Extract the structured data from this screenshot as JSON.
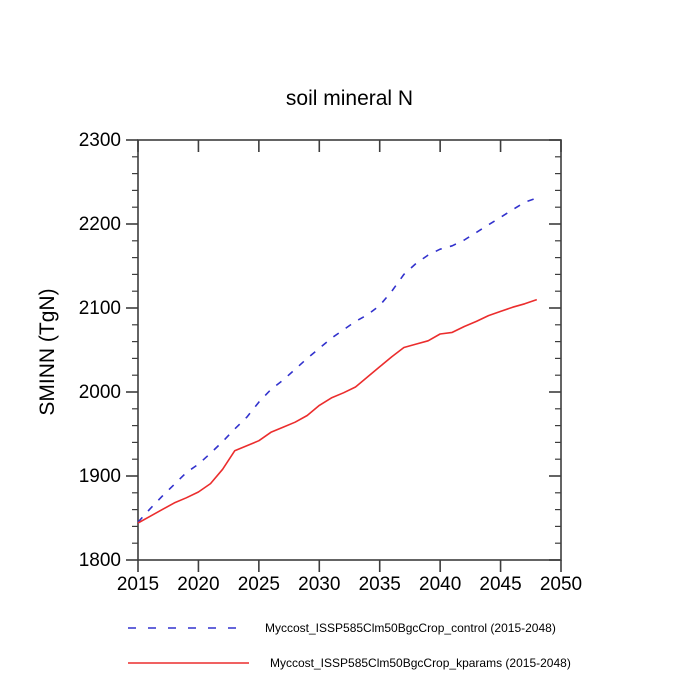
{
  "title": "soil mineral N",
  "axes": {
    "y": {
      "title": "SMINN  (TgN)",
      "tick_labels": [
        "1800",
        "1900",
        "2000",
        "2100",
        "2200",
        "2300"
      ]
    },
    "x": {
      "tick_labels": [
        "2015",
        "2020",
        "2025",
        "2030",
        "2035",
        "2040",
        "2045",
        "2050"
      ]
    }
  },
  "legend": {
    "items": [
      {
        "label": "Myccost_ISSP585Clm50BgcCrop_control (2015-2048)",
        "color": "#3232cd",
        "style": "dashed"
      },
      {
        "label": "Myccost_ISSP585Clm50BgcCrop_kparams (2015-2048)",
        "color": "#eb2d2d",
        "style": "solid"
      }
    ]
  },
  "chart_data": {
    "type": "line",
    "title": "soil mineral N",
    "xlabel": "",
    "ylabel": "SMINN (TgN)",
    "xlim": [
      2015,
      2050
    ],
    "ylim": [
      1800,
      2300
    ],
    "x_major_step": 5,
    "y_major_step": 100,
    "y_minor_step": 20,
    "grid": false,
    "legend_position": "bottom",
    "x": [
      2015,
      2016,
      2017,
      2018,
      2019,
      2020,
      2021,
      2022,
      2023,
      2024,
      2025,
      2026,
      2027,
      2028,
      2029,
      2030,
      2031,
      2032,
      2033,
      2034,
      2035,
      2036,
      2037,
      2038,
      2039,
      2040,
      2041,
      2042,
      2043,
      2044,
      2045,
      2046,
      2047,
      2048
    ],
    "series": [
      {
        "name": "Myccost_ISSP585Clm50BgcCrop_control (2015-2048)",
        "color": "#3232cd",
        "line_style": "dashed",
        "values": [
          1845,
          1861,
          1876,
          1890,
          1904,
          1914,
          1927,
          1941,
          1956,
          1970,
          1988,
          2003,
          2014,
          2027,
          2040,
          2052,
          2064,
          2074,
          2084,
          2092,
          2103,
          2120,
          2140,
          2153,
          2163,
          2170,
          2174,
          2181,
          2190,
          2199,
          2208,
          2217,
          2226,
          2231
        ]
      },
      {
        "name": "Myccost_ISSP585Clm50BgcCrop_kparams (2015-2048)",
        "color": "#eb2d2d",
        "line_style": "solid",
        "values": [
          1844,
          1852,
          1860,
          1868,
          1874,
          1881,
          1891,
          1908,
          1930,
          1936,
          1942,
          1952,
          1958,
          1964,
          1972,
          1984,
          1993,
          1999,
          2006,
          2018,
          2030,
          2042,
          2053,
          2057,
          2061,
          2069,
          2071,
          2078,
          2084,
          2091,
          2096,
          2101,
          2105,
          2110
        ]
      }
    ]
  }
}
